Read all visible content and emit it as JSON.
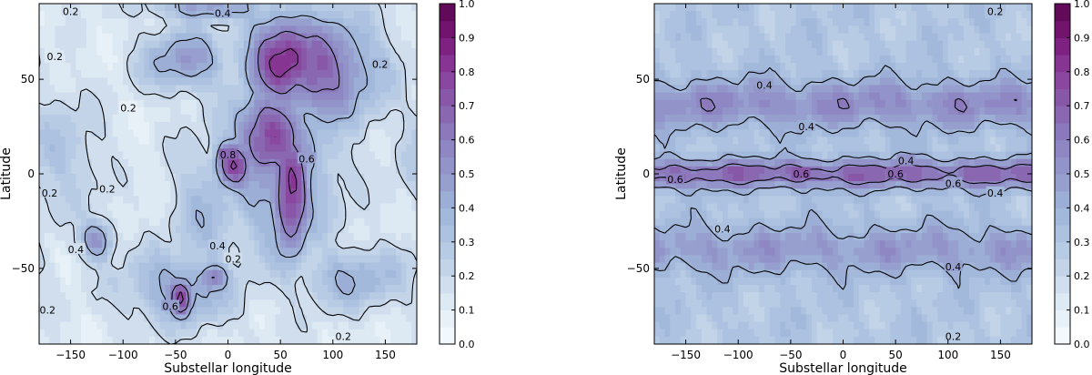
{
  "chart_data": [
    {
      "type": "heatmap",
      "subtype": "filled-contour",
      "xlabel": "Substellar longitude",
      "ylabel": "Latitude",
      "xlim": [
        -180,
        180
      ],
      "ylim": [
        -90,
        90
      ],
      "xticks": [
        -150,
        -100,
        -50,
        0,
        50,
        100,
        150
      ],
      "yticks": [
        -50,
        0,
        50
      ],
      "colorbar": {
        "min": 0.0,
        "max": 1.0,
        "ticks": [
          "0.0",
          "0.1",
          "0.2",
          "0.3",
          "0.4",
          "0.5",
          "0.6",
          "0.7",
          "0.8",
          "0.9",
          "1.0"
        ]
      },
      "contour_levels": [
        0.2,
        0.4,
        0.6,
        0.8
      ],
      "features": [
        {
          "lon": 55,
          "lat": 60,
          "value": 0.85,
          "sx": 28,
          "sy": 18
        },
        {
          "lon": 80,
          "lat": 55,
          "value": 0.7,
          "sx": 45,
          "sy": 22
        },
        {
          "lon": 40,
          "lat": 20,
          "value": 0.8,
          "sx": 25,
          "sy": 18
        },
        {
          "lon": 60,
          "lat": -10,
          "value": 0.85,
          "sx": 14,
          "sy": 25
        },
        {
          "lon": 5,
          "lat": 5,
          "value": 0.8,
          "sx": 14,
          "sy": 10
        },
        {
          "lon": 50,
          "lat": 10,
          "value": 0.5,
          "sx": 40,
          "sy": 40
        },
        {
          "lon": -45,
          "lat": -65,
          "value": 0.85,
          "sx": 9,
          "sy": 8
        },
        {
          "lon": -15,
          "lat": -55,
          "value": 0.6,
          "sx": 12,
          "sy": 6
        },
        {
          "lon": -125,
          "lat": -35,
          "value": 0.55,
          "sx": 12,
          "sy": 8
        },
        {
          "lon": -45,
          "lat": -60,
          "value": 0.45,
          "sx": 40,
          "sy": 15
        },
        {
          "lon": -40,
          "lat": 60,
          "value": 0.5,
          "sx": 30,
          "sy": 12
        },
        {
          "lon": -20,
          "lat": 88,
          "value": 0.5,
          "sx": 40,
          "sy": 5
        },
        {
          "lon": -160,
          "lat": 10,
          "value": 0.3,
          "sx": 30,
          "sy": 25
        },
        {
          "lon": 120,
          "lat": -55,
          "value": 0.4,
          "sx": 40,
          "sy": 12
        },
        {
          "lon": -20,
          "lat": -20,
          "value": 0.35,
          "sx": 25,
          "sy": 30
        }
      ],
      "contour_labels": [
        {
          "lon": -150,
          "lat": 88,
          "text": "0.2"
        },
        {
          "lon": -5,
          "lat": 85,
          "text": "0.4"
        },
        {
          "lon": -165,
          "lat": 62,
          "text": "0.2"
        },
        {
          "lon": 145,
          "lat": 58,
          "text": "0.2"
        },
        {
          "lon": -95,
          "lat": 35,
          "text": "0.2"
        },
        {
          "lon": -170,
          "lat": -10,
          "text": "0.2"
        },
        {
          "lon": -115,
          "lat": -8,
          "text": "0.2"
        },
        {
          "lon": 75,
          "lat": 8,
          "text": "0.6"
        },
        {
          "lon": 0,
          "lat": 10,
          "text": "0.8"
        },
        {
          "lon": -10,
          "lat": -38,
          "text": "0.4"
        },
        {
          "lon": -145,
          "lat": -40,
          "text": "0.4"
        },
        {
          "lon": 5,
          "lat": -45,
          "text": "0.2"
        },
        {
          "lon": -55,
          "lat": -70,
          "text": "0.6"
        },
        {
          "lon": -180,
          "lat": -72,
          "text": "0.2"
        },
        {
          "lon": 110,
          "lat": -88,
          "text": "0.2"
        }
      ]
    },
    {
      "type": "heatmap",
      "subtype": "filled-contour",
      "xlabel": "Substellar longitude",
      "ylabel": "Latitude",
      "xlim": [
        -180,
        180
      ],
      "ylim": [
        -90,
        90
      ],
      "xticks": [
        -150,
        -100,
        -50,
        0,
        50,
        100,
        150
      ],
      "yticks": [
        -50,
        0,
        50
      ],
      "colorbar": {
        "min": 0.0,
        "max": 1.0,
        "ticks": [
          "0.0",
          "0.1",
          "0.2",
          "0.3",
          "0.4",
          "0.5",
          "0.6",
          "0.7",
          "0.8",
          "0.9",
          "1.0"
        ]
      },
      "contour_levels": [
        0.2,
        0.4,
        0.6
      ],
      "bands": [
        {
          "lat": 0,
          "width": 5,
          "value": 0.7
        },
        {
          "lat": 37,
          "width": 9,
          "value": 0.55
        },
        {
          "lat": -40,
          "width": 9,
          "value": 0.5
        },
        {
          "lat": 88,
          "width": 4,
          "value": 0.2
        },
        {
          "lat": -88,
          "width": 4,
          "value": 0.2
        }
      ],
      "base_value": 0.3,
      "contour_labels": [
        {
          "lon": 145,
          "lat": 87,
          "text": "0.2"
        },
        {
          "lon": -75,
          "lat": 47,
          "text": "0.4"
        },
        {
          "lon": -35,
          "lat": 25,
          "text": "0.4"
        },
        {
          "lon": 60,
          "lat": 7,
          "text": "0.4"
        },
        {
          "lon": -40,
          "lat": 0,
          "text": "0.6"
        },
        {
          "lon": 50,
          "lat": 0,
          "text": "0.6"
        },
        {
          "lon": -160,
          "lat": -3,
          "text": "0.6"
        },
        {
          "lon": 105,
          "lat": -5,
          "text": "0.6"
        },
        {
          "lon": 145,
          "lat": -10,
          "text": "0.4"
        },
        {
          "lon": -115,
          "lat": -29,
          "text": "0.4"
        },
        {
          "lon": 105,
          "lat": -49,
          "text": "0.4"
        },
        {
          "lon": 105,
          "lat": -86,
          "text": "0.2"
        }
      ]
    }
  ]
}
